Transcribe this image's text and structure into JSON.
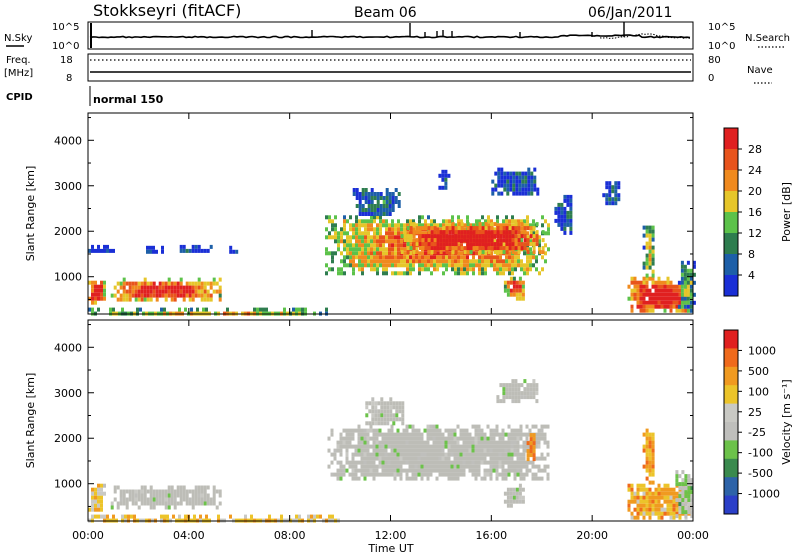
{
  "header": {
    "station": "Stokkseyri (fitACF)",
    "beam": "Beam 06",
    "date": "06/Jan/2011"
  },
  "strips": {
    "nsky_label": "N.Sky",
    "nsky_ticks": [
      "10^5",
      "10^0"
    ],
    "nsearch_label": "N.Search",
    "nsearch_ticks": [
      "10^5",
      "10^0"
    ],
    "freq_label": "Freq.",
    "freq_unit": "[MHz]",
    "freq_ticks": [
      "18",
      "8"
    ],
    "nave_label": "Nave",
    "nave_ticks": [
      "80",
      "0"
    ],
    "cpid_label": "CPID",
    "cpid_value": "normal 150"
  },
  "colors": {
    "power": [
      "#1a2fd6",
      "#1d5fa8",
      "#2e7d4f",
      "#5cc24a",
      "#e6c62a",
      "#f08a1e",
      "#e8541c",
      "#e02020"
    ],
    "velocity": [
      "#2b3fc8",
      "#2d63a8",
      "#3a8a4e",
      "#6cc24a",
      "#bfbfbc",
      "#c9c9c4",
      "#ecc42a",
      "#f09a20",
      "#ef6a1c",
      "#e02020"
    ],
    "ground_scatter": "#bdbdb7"
  },
  "chart_data": [
    {
      "type": "heatmap",
      "name": "power-panel",
      "xlabel": "",
      "ylabel": "Slant Range [km]",
      "x_ticks": [
        "00:00",
        "04:00",
        "08:00",
        "12:00",
        "16:00",
        "20:00",
        "00:00"
      ],
      "xlim_hours": [
        0,
        24
      ],
      "ylim_km": [
        180,
        4600
      ],
      "y_ticks": [
        1000,
        2000,
        3000,
        4000
      ],
      "colorbar": {
        "label": "Power [dB]",
        "ticks": [
          "28",
          "24",
          "20",
          "16",
          "12",
          "8",
          "4"
        ],
        "range": [
          0,
          32
        ]
      },
      "regions": [
        {
          "t0": 0.0,
          "t1": 0.6,
          "r0": 420,
          "r1": 1000,
          "level": 0.85
        },
        {
          "t0": 0.9,
          "t1": 5.3,
          "r0": 500,
          "r1": 980,
          "level": 0.8
        },
        {
          "t0": 0.0,
          "t1": 9.5,
          "r0": 180,
          "r1": 320,
          "level": 0.5
        },
        {
          "t0": 0.0,
          "t1": 1.0,
          "r0": 1550,
          "r1": 1700,
          "level": 0.1
        },
        {
          "t0": 2.3,
          "t1": 3.0,
          "r0": 1580,
          "r1": 1680,
          "level": 0.1
        },
        {
          "t0": 3.4,
          "t1": 4.9,
          "r0": 1570,
          "r1": 1700,
          "level": 0.1
        },
        {
          "t0": 5.6,
          "t1": 6.1,
          "r0": 1580,
          "r1": 1680,
          "level": 0.1
        },
        {
          "t0": 9.4,
          "t1": 18.3,
          "r0": 1080,
          "r1": 2350,
          "level": 0.65
        },
        {
          "t0": 12.4,
          "t1": 18.1,
          "r0": 1550,
          "r1": 2200,
          "level": 0.9
        },
        {
          "t0": 10.5,
          "t1": 12.3,
          "r0": 2350,
          "r1": 2950,
          "level": 0.2
        },
        {
          "t0": 16.0,
          "t1": 17.8,
          "r0": 2800,
          "r1": 3400,
          "level": 0.15
        },
        {
          "t0": 13.9,
          "t1": 14.3,
          "r0": 2950,
          "r1": 3350,
          "level": 0.1
        },
        {
          "t0": 16.5,
          "t1": 17.3,
          "r0": 550,
          "r1": 1000,
          "level": 0.75
        },
        {
          "t0": 18.5,
          "t1": 19.2,
          "r0": 2000,
          "r1": 2800,
          "level": 0.15
        },
        {
          "t0": 20.4,
          "t1": 21.0,
          "r0": 2600,
          "r1": 3100,
          "level": 0.2
        },
        {
          "t0": 21.4,
          "t1": 23.8,
          "r0": 250,
          "r1": 1000,
          "level": 0.92
        },
        {
          "t0": 22.0,
          "t1": 22.4,
          "r0": 1000,
          "r1": 2300,
          "level": 0.45
        },
        {
          "t0": 23.4,
          "t1": 24.0,
          "r0": 250,
          "r1": 1350,
          "level": 0.35
        }
      ]
    },
    {
      "type": "heatmap",
      "name": "velocity-panel",
      "xlabel": "Time UT",
      "ylabel": "Slant Range [km]",
      "x_ticks": [
        "00:00",
        "04:00",
        "08:00",
        "12:00",
        "16:00",
        "20:00",
        "00:00"
      ],
      "xlim_hours": [
        0,
        24
      ],
      "ylim_km": [
        180,
        4600
      ],
      "y_ticks": [
        1000,
        2000,
        3000,
        4000
      ],
      "colorbar": {
        "label": "Velocity [m s^-1]",
        "ticks": [
          "1000",
          "500",
          "100",
          "25",
          "-25",
          "-100",
          "-500",
          "-1000"
        ]
      },
      "regions": [
        {
          "t0": 0.0,
          "t1": 0.6,
          "r0": 400,
          "r1": 1000,
          "level": 0.6
        },
        {
          "t0": 0.9,
          "t1": 5.3,
          "r0": 520,
          "r1": 960,
          "level": 0.45
        },
        {
          "t0": 0.0,
          "t1": 10.0,
          "r0": 180,
          "r1": 320,
          "level": 0.65
        },
        {
          "t0": 9.5,
          "t1": 18.3,
          "r0": 1100,
          "r1": 2300,
          "level": 0.45
        },
        {
          "t0": 11.0,
          "t1": 12.5,
          "r0": 2350,
          "r1": 2900,
          "level": 0.45
        },
        {
          "t0": 16.2,
          "t1": 17.8,
          "r0": 2850,
          "r1": 3300,
          "level": 0.45
        },
        {
          "t0": 17.4,
          "t1": 17.7,
          "r0": 1550,
          "r1": 2200,
          "level": 0.8
        },
        {
          "t0": 16.5,
          "t1": 17.3,
          "r0": 550,
          "r1": 1000,
          "level": 0.45
        },
        {
          "t0": 21.4,
          "t1": 23.8,
          "r0": 250,
          "r1": 1000,
          "level": 0.7
        },
        {
          "t0": 22.0,
          "t1": 22.4,
          "r0": 1000,
          "r1": 2300,
          "level": 0.75
        },
        {
          "t0": 23.3,
          "t1": 24.0,
          "r0": 300,
          "r1": 1300,
          "level": 0.4
        }
      ]
    }
  ]
}
